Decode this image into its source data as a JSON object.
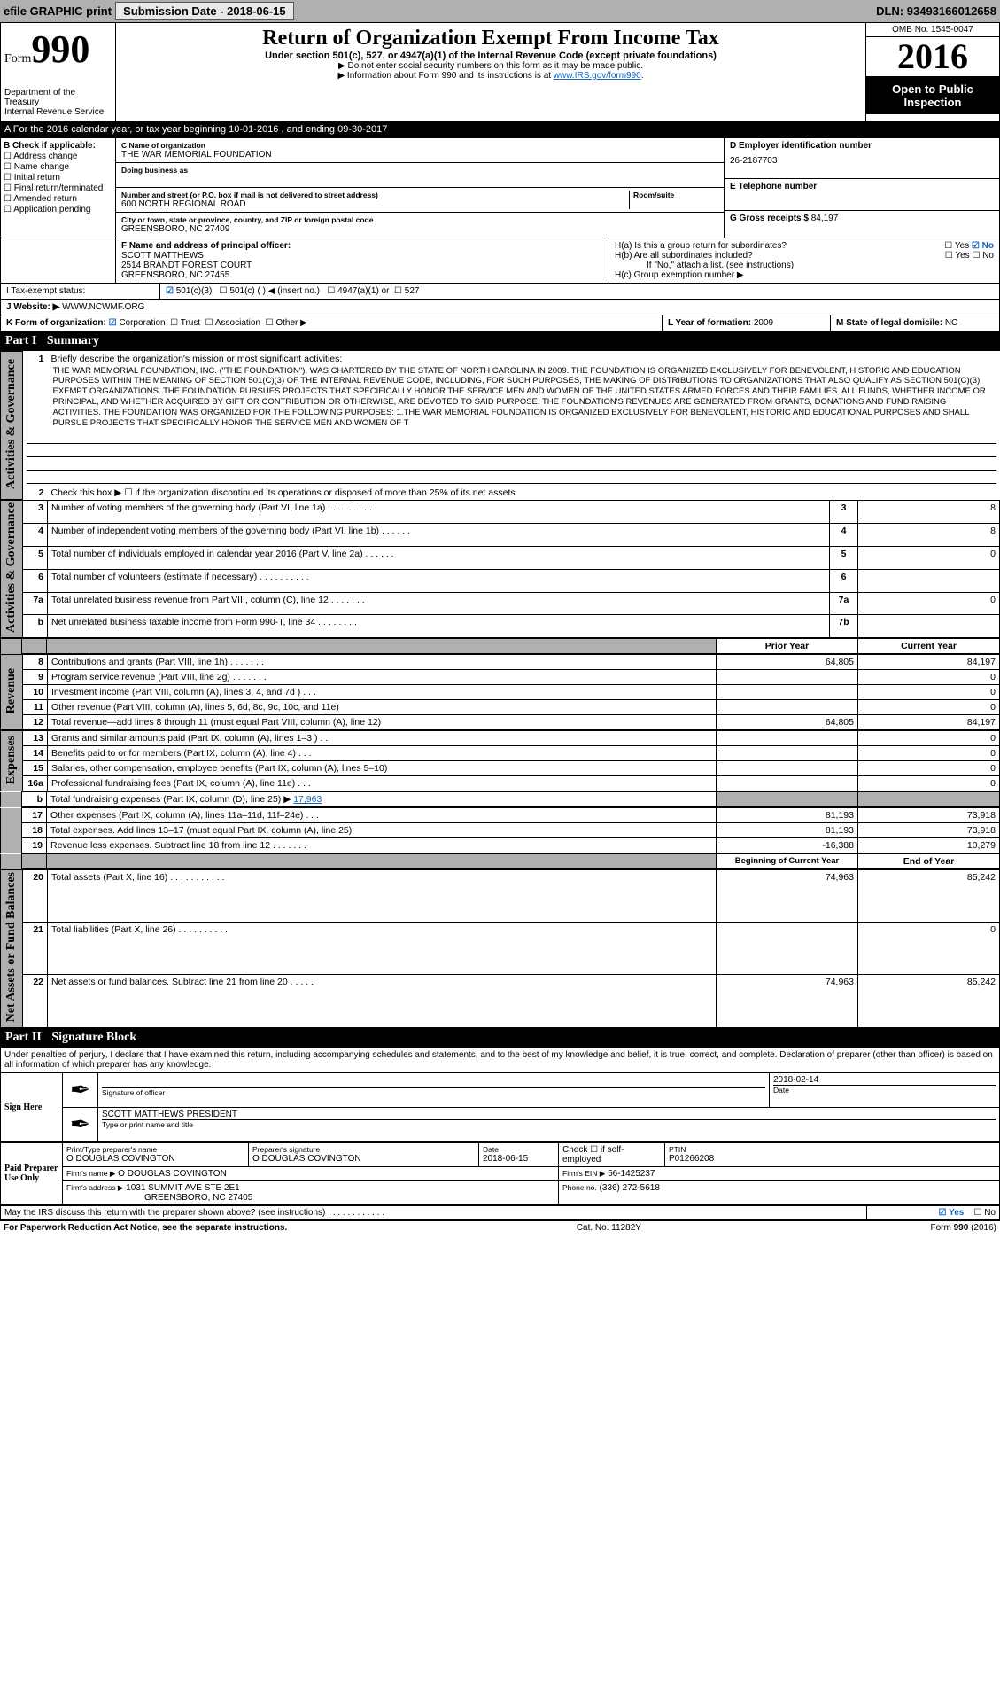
{
  "topbar": {
    "efile": "efile GRAPHIC print",
    "subdate_lbl": "Submission Date -",
    "subdate": "2018-06-15",
    "dln_lbl": "DLN:",
    "dln": "93493166012658"
  },
  "header": {
    "form_word": "Form",
    "form_num": "990",
    "dept1": "Department of the Treasury",
    "dept2": "Internal Revenue Service",
    "title": "Return of Organization Exempt From Income Tax",
    "sub": "Under section 501(c), 527, or 4947(a)(1) of the Internal Revenue Code (except private foundations)",
    "note1": "▶ Do not enter social security numbers on this form as it may be made public.",
    "note2": "▶ Information about Form 990 and its instructions is at ",
    "note2_link": "www.IRS.gov/form990",
    "omb": "OMB No. 1545-0047",
    "year": "2016",
    "open1": "Open to Public",
    "open2": "Inspection"
  },
  "period": {
    "a": "A For the 2016 calendar year, or tax year beginning 10-01-2016   , and ending 09-30-2017"
  },
  "B": {
    "lbl": "B Check if applicable:",
    "c1": "☐ Address change",
    "c2": "☐ Name change",
    "c3": "☐ Initial return",
    "c4": "☐ Final return/terminated",
    "c5": "☐ Amended return",
    "c6": "☐ Application pending"
  },
  "C": {
    "name_lbl": "C Name of organization",
    "name": "THE WAR MEMORIAL FOUNDATION",
    "dba_lbl": "Doing business as",
    "street_lbl": "Number and street (or P.O. box if mail is not delivered to street address)",
    "room_lbl": "Room/suite",
    "street": "600 NORTH REGIONAL ROAD",
    "city_lbl": "City or town, state or province, country, and ZIP or foreign postal code",
    "city": "GREENSBORO, NC  27409"
  },
  "D": {
    "lbl": "D Employer identification number",
    "val": "26-2187703"
  },
  "E": {
    "lbl": "E Telephone number",
    "val": ""
  },
  "G": {
    "lbl": "G Gross receipts $",
    "val": "84,197"
  },
  "F": {
    "lbl": "F  Name and address of principal officer:",
    "l1": "SCOTT MATTHEWS",
    "l2": "2514 BRANDT FOREST COURT",
    "l3": "GREENSBORO, NC  27455"
  },
  "H": {
    "a_lbl": "H(a)  Is this a group return for subordinates?",
    "a_yes": "☐ Yes",
    "a_no": "☑ No",
    "b_lbl": "H(b)  Are all subordinates included?",
    "b_yes": "☐ Yes",
    "b_no": "☐ No",
    "b_note": "If \"No,\" attach a list. (see instructions)",
    "c_lbl": "H(c)  Group exemption number ▶"
  },
  "I": {
    "lbl": "I   Tax-exempt status:",
    "o1": "501(c)(3)",
    "o2": "501(c) (  ) ◀ (insert no.)",
    "o3": "4947(a)(1) or",
    "o4": "527"
  },
  "J": {
    "lbl": "J   Website: ▶",
    "val": "WWW.NCWMF.ORG"
  },
  "K": {
    "lbl": "K Form of organization:",
    "o1": "Corporation",
    "o2": "Trust",
    "o3": "Association",
    "o4": "Other ▶"
  },
  "L": {
    "lbl": "L Year of formation:",
    "val": "2009"
  },
  "M": {
    "lbl": "M State of legal domicile:",
    "val": "NC"
  },
  "part1": {
    "hdr": "Part I",
    "sub": "Summary"
  },
  "summary": {
    "l1": "Briefly describe the organization's mission or most significant activities:",
    "mission": "THE WAR MEMORIAL FOUNDATION, INC. (\"THE FOUNDATION\"), WAS CHARTERED BY THE STATE OF NORTH CAROLINA IN 2009. THE FOUNDATION IS ORGANIZED EXCLUSIVELY FOR BENEVOLENT, HISTORIC AND EDUCATION PURPOSES WITHIN THE MEANING OF SECTION 501(C)(3) OF THE INTERNAL REVENUE CODE, INCLUDING, FOR SUCH PURPOSES, THE MAKING OF DISTRIBUTIONS TO ORGANIZATIONS THAT ALSO QUALIFY AS SECTION 501(C)(3) EXEMPT ORGANIZATIONS. THE FOUNDATION PURSUES PROJECTS THAT SPECIFICALLY HONOR THE SERVICE MEN AND WOMEN OF THE UNITED STATES ARMED FORCES AND THEIR FAMILIES. ALL FUNDS, WHETHER INCOME OR PRINCIPAL, AND WHETHER ACQUIRED BY GIFT OR CONTRIBUTION OR OTHERWISE, ARE DEVOTED TO SAID PURPOSE. THE FOUNDATION'S REVENUES ARE GENERATED FROM GRANTS, DONATIONS AND FUND RAISING ACTIVITIES. THE FOUNDATION WAS ORGANIZED FOR THE FOLLOWING PURPOSES: 1.THE WAR MEMORIAL FOUNDATION IS ORGANIZED EXCLUSIVELY FOR BENEVOLENT, HISTORIC AND EDUCATIONAL PURPOSES AND SHALL PURSUE PROJECTS THAT SPECIFICALLY HONOR THE SERVICE MEN AND WOMEN OF T",
    "l2": "Check this box ▶ ☐ if the organization discontinued its operations or disposed of more than 25% of its net assets.",
    "rows_a": [
      {
        "n": "3",
        "t": "Number of voting members of the governing body (Part VI, line 1a)  .    .    .    .    .    .    .    .    .",
        "b": "3",
        "v": "8"
      },
      {
        "n": "4",
        "t": "Number of independent voting members of the governing body (Part VI, line 1b)  .    .    .    .    .    .",
        "b": "4",
        "v": "8"
      },
      {
        "n": "5",
        "t": "Total number of individuals employed in calendar year 2016 (Part V, line 2a)  .    .    .    .    .    .",
        "b": "5",
        "v": "0"
      },
      {
        "n": "6",
        "t": "Total number of volunteers (estimate if necessary)  .    .    .    .    .    .    .    .    .    .",
        "b": "6",
        "v": ""
      },
      {
        "n": "7a",
        "t": "Total unrelated business revenue from Part VIII, column (C), line 12  .    .    .    .    .    .    .",
        "b": "7a",
        "v": "0"
      },
      {
        "n": "b",
        "t": "Net unrelated business taxable income from Form 990-T, line 34  .    .    .    .    .    .    .    .",
        "b": "7b",
        "v": ""
      }
    ],
    "col_hdr_prior": "Prior Year",
    "col_hdr_curr": "Current Year",
    "rows_rev": [
      {
        "n": "8",
        "t": "Contributions and grants (Part VIII, line 1h)  .    .    .    .    .    .    .",
        "p": "64,805",
        "c": "84,197"
      },
      {
        "n": "9",
        "t": "Program service revenue (Part VIII, line 2g)  .    .    .    .    .    .    .",
        "p": "",
        "c": "0"
      },
      {
        "n": "10",
        "t": "Investment income (Part VIII, column (A), lines 3, 4, and 7d )  .    .    .",
        "p": "",
        "c": "0"
      },
      {
        "n": "11",
        "t": "Other revenue (Part VIII, column (A), lines 5, 6d, 8c, 9c, 10c, and 11e)",
        "p": "",
        "c": "0"
      },
      {
        "n": "12",
        "t": "Total revenue—add lines 8 through 11 (must equal Part VIII, column (A), line 12)",
        "p": "64,805",
        "c": "84,197"
      }
    ],
    "rows_exp": [
      {
        "n": "13",
        "t": "Grants and similar amounts paid (Part IX, column (A), lines 1–3 )  .    .",
        "p": "",
        "c": "0"
      },
      {
        "n": "14",
        "t": "Benefits paid to or for members (Part IX, column (A), line 4)  .    .    .",
        "p": "",
        "c": "0"
      },
      {
        "n": "15",
        "t": "Salaries, other compensation, employee benefits (Part IX, column (A), lines 5–10)",
        "p": "",
        "c": "0"
      },
      {
        "n": "16a",
        "t": "Professional fundraising fees (Part IX, column (A), line 11e)  .    .    .",
        "p": "",
        "c": "0"
      }
    ],
    "l16b": "Total fundraising expenses (Part IX, column (D), line 25) ▶",
    "l16b_val": "17,963",
    "rows_exp2": [
      {
        "n": "17",
        "t": "Other expenses (Part IX, column (A), lines 11a–11d, 11f–24e)  .    .    .",
        "p": "81,193",
        "c": "73,918"
      },
      {
        "n": "18",
        "t": "Total expenses. Add lines 13–17 (must equal Part IX, column (A), line 25)",
        "p": "81,193",
        "c": "73,918"
      },
      {
        "n": "19",
        "t": "Revenue less expenses. Subtract line 18 from line 12  .    .    .    .    .    .    .",
        "p": "-16,388",
        "c": "10,279"
      }
    ],
    "col_hdr_beg": "Beginning of Current Year",
    "col_hdr_end": "End of Year",
    "rows_net": [
      {
        "n": "20",
        "t": "Total assets (Part X, line 16)  .    .    .    .    .    .    .    .    .    .    .",
        "p": "74,963",
        "c": "85,242"
      },
      {
        "n": "21",
        "t": "Total liabilities (Part X, line 26)  .    .    .    .    .    .    .    .    .    .",
        "p": "",
        "c": "0"
      },
      {
        "n": "22",
        "t": "Net assets or fund balances. Subtract line 21 from line 20  .    .    .    .    .",
        "p": "74,963",
        "c": "85,242"
      }
    ],
    "vlabels": {
      "ag": "Activities & Governance",
      "rev": "Revenue",
      "exp": "Expenses",
      "net": "Net Assets or\nFund Balances"
    }
  },
  "part2": {
    "hdr": "Part II",
    "sub": "Signature Block"
  },
  "sig": {
    "text": "Under penalties of perjury, I declare that I have examined this return, including accompanying schedules and statements, and to the best of my knowledge and belief, it is true, correct, and complete. Declaration of preparer (other than officer) is based on all information of which preparer has any knowledge.",
    "sign_here": "Sign Here",
    "sig_officer_lbl": "Signature of officer",
    "date_lbl": "Date",
    "sig_date": "2018-02-14",
    "name_title": "SCOTT MATTHEWS PRESIDENT",
    "name_title_lbl": "Type or print name and title",
    "paid": "Paid Preparer Use Only",
    "p_name_lbl": "Print/Type preparer's name",
    "p_name": "O DOUGLAS COVINGTON",
    "p_sig_lbl": "Preparer's signature",
    "p_sig": "O DOUGLAS COVINGTON",
    "p_date_lbl": "Date",
    "p_date": "2018-06-15",
    "p_self_lbl": "Check ☐ if self-employed",
    "ptin_lbl": "PTIN",
    "ptin": "P01266208",
    "firm_name_lbl": "Firm's name    ▶",
    "firm_name": "O DOUGLAS COVINGTON",
    "firm_ein_lbl": "Firm's EIN ▶",
    "firm_ein": "56-1425237",
    "firm_addr_lbl": "Firm's address ▶",
    "firm_addr1": "1031 SUMMIT AVE STE 2E1",
    "firm_addr2": "GREENSBORO, NC  27405",
    "phone_lbl": "Phone no.",
    "phone": "(336) 272-5618",
    "discuss": "May the IRS discuss this return with the preparer shown above? (see instructions)  .    .    .    .    .    .    .    .    .    .    .    .",
    "d_yes": "☑ Yes",
    "d_no": "☐ No"
  },
  "footer": {
    "l": "For Paperwork Reduction Act Notice, see the separate instructions.",
    "m": "Cat. No. 11282Y",
    "r": "Form 990 (2016)"
  },
  "colors": {
    "accent": "#1565c0",
    "shade": "#b0b0b0",
    "black": "#000000"
  }
}
